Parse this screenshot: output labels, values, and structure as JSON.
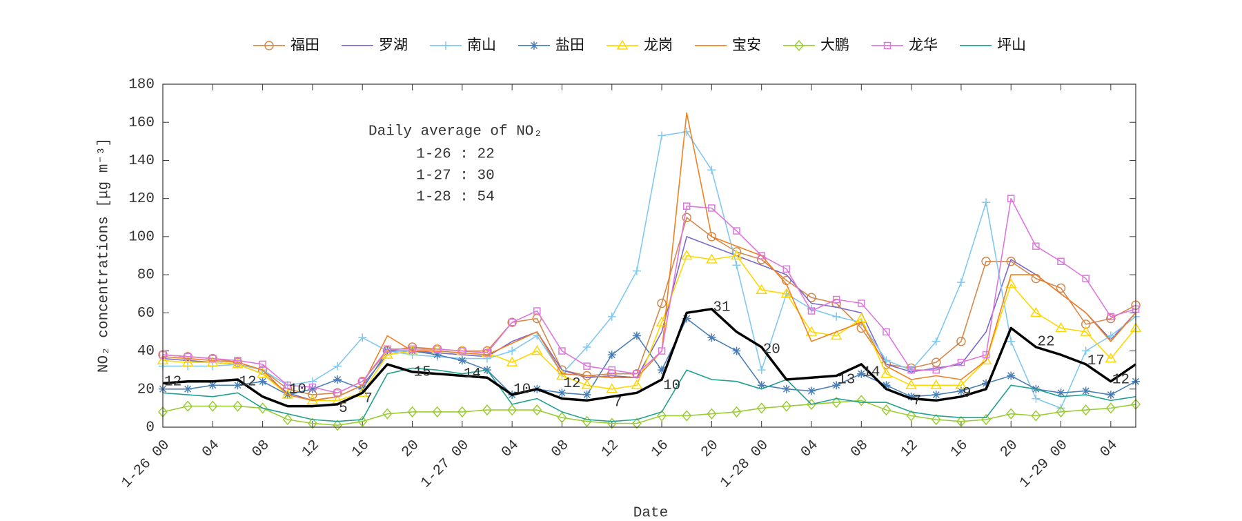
{
  "chart_data": {
    "type": "line",
    "y_label": "NO₂ concentrations [μg m⁻³]",
    "x_label": "Date",
    "text_box": {
      "title": "Daily average of NO₂",
      "lines": [
        "1-26 : 22",
        "1-27 : 30",
        "1-28 : 54"
      ]
    },
    "x": [
      "1-26 00",
      "1-26 02",
      "1-26 04",
      "1-26 06",
      "1-26 08",
      "1-26 10",
      "1-26 12",
      "1-26 14",
      "1-26 16",
      "1-26 18",
      "1-26 20",
      "1-26 22",
      "1-27 00",
      "1-27 02",
      "1-27 04",
      "1-27 06",
      "1-27 08",
      "1-27 10",
      "1-27 12",
      "1-27 14",
      "1-27 16",
      "1-27 18",
      "1-27 20",
      "1-27 22",
      "1-28 00",
      "1-28 02",
      "1-28 04",
      "1-28 06",
      "1-28 08",
      "1-28 10",
      "1-28 12",
      "1-28 14",
      "1-28 16",
      "1-28 18",
      "1-28 20",
      "1-28 22",
      "1-29 00",
      "1-29 02",
      "1-29 04",
      "1-29 06"
    ],
    "xticks": [
      "1-26 00",
      {
        "value": "1-26 04",
        "label": "04"
      },
      {
        "value": "1-26 08",
        "label": "08"
      },
      {
        "value": "1-26 12",
        "label": "12"
      },
      {
        "value": "1-26 16",
        "label": "16"
      },
      {
        "value": "1-26 20",
        "label": "20"
      },
      "1-27 00",
      {
        "value": "1-27 04",
        "label": "04"
      },
      {
        "value": "1-27 08",
        "label": "08"
      },
      {
        "value": "1-27 12",
        "label": "12"
      },
      {
        "value": "1-27 16",
        "label": "16"
      },
      {
        "value": "1-27 20",
        "label": "20"
      },
      "1-28 00",
      {
        "value": "1-28 04",
        "label": "04"
      },
      {
        "value": "1-28 08",
        "label": "08"
      },
      {
        "value": "1-28 12",
        "label": "12"
      },
      {
        "value": "1-28 16",
        "label": "16"
      },
      {
        "value": "1-28 20",
        "label": "20"
      },
      "1-29 00",
      {
        "value": "1-29 04",
        "label": "04"
      }
    ],
    "ylim": [
      0,
      180
    ],
    "yticks": [
      0,
      20,
      40,
      60,
      80,
      100,
      120,
      140,
      160,
      180
    ],
    "legend": "top",
    "series": [
      {
        "name": "福田",
        "color": "#d4884a",
        "marker": "circle",
        "values": [
          38,
          37,
          36,
          34,
          30,
          20,
          17,
          18,
          24,
          40,
          42,
          41,
          40,
          40,
          55,
          57,
          30,
          27,
          28,
          28,
          65,
          110,
          100,
          92,
          88,
          77,
          68,
          65,
          52,
          33,
          31,
          34,
          45,
          87,
          87,
          78,
          73,
          54,
          57,
          64
        ]
      },
      {
        "name": "罗湖",
        "color": "#7b68c8",
        "marker": "none",
        "values": [
          36,
          35,
          34,
          33,
          28,
          18,
          14,
          16,
          22,
          38,
          40,
          39,
          38,
          37,
          45,
          50,
          30,
          26,
          27,
          26,
          50,
          100,
          95,
          90,
          85,
          80,
          65,
          63,
          60,
          33,
          29,
          31,
          33,
          50,
          88,
          80,
          70,
          60,
          46,
          60
        ]
      },
      {
        "name": "南山",
        "color": "#80c8f0",
        "marker": "plus",
        "values": [
          32,
          32,
          32,
          33,
          30,
          22,
          24,
          32,
          47,
          40,
          38,
          37,
          36,
          36,
          40,
          48,
          28,
          42,
          58,
          82,
          153,
          155,
          135,
          85,
          30,
          70,
          62,
          58,
          55,
          35,
          30,
          45,
          76,
          118,
          45,
          15,
          10,
          40,
          48,
          58
        ]
      },
      {
        "name": "盐田",
        "color": "#4a7fb5",
        "marker": "star",
        "values": [
          20,
          20,
          22,
          22,
          24,
          17,
          20,
          25,
          20,
          40,
          40,
          38,
          35,
          30,
          17,
          20,
          18,
          17,
          38,
          48,
          30,
          57,
          47,
          40,
          22,
          20,
          19,
          22,
          28,
          22,
          16,
          17,
          19,
          23,
          27,
          20,
          18,
          19,
          17,
          24
        ]
      },
      {
        "name": "龙岗",
        "color": "#ffd700",
        "marker": "triangle",
        "values": [
          35,
          34,
          34,
          33,
          28,
          17,
          14,
          14,
          18,
          38,
          40,
          41,
          40,
          39,
          34,
          40,
          27,
          22,
          20,
          22,
          55,
          90,
          88,
          90,
          72,
          70,
          50,
          48,
          57,
          28,
          22,
          22,
          22,
          35,
          75,
          60,
          52,
          50,
          36,
          52
        ]
      },
      {
        "name": "宝安",
        "color": "#f08020",
        "marker": "none",
        "values": [
          37,
          36,
          35,
          34,
          30,
          17,
          14,
          16,
          22,
          48,
          40,
          40,
          39,
          38,
          44,
          50,
          28,
          27,
          26,
          26,
          40,
          165,
          100,
          95,
          90,
          75,
          45,
          50,
          55,
          32,
          25,
          27,
          25,
          35,
          80,
          80,
          70,
          60,
          45,
          60
        ]
      },
      {
        "name": "大鹏",
        "color": "#9acd32",
        "marker": "diamond",
        "values": [
          8,
          11,
          11,
          11,
          10,
          4,
          2,
          1,
          3,
          7,
          8,
          8,
          8,
          9,
          9,
          9,
          5,
          3,
          2,
          2,
          6,
          6,
          7,
          8,
          10,
          11,
          12,
          13,
          14,
          9,
          6,
          4,
          3,
          4,
          7,
          6,
          8,
          9,
          10,
          12
        ]
      },
      {
        "name": "龙华",
        "color": "#dd77dd",
        "marker": "square",
        "values": [
          38,
          37,
          36,
          35,
          33,
          22,
          21,
          18,
          24,
          41,
          41,
          41,
          40,
          39,
          55,
          61,
          40,
          32,
          30,
          28,
          40,
          116,
          115,
          103,
          90,
          83,
          61,
          67,
          65,
          50,
          30,
          30,
          34,
          38,
          120,
          95,
          87,
          78,
          58,
          62
        ]
      },
      {
        "name": "坪山",
        "color": "#20a090",
        "marker": "none",
        "values": [
          18,
          17,
          16,
          18,
          10,
          7,
          4,
          3,
          4,
          28,
          31,
          30,
          28,
          30,
          12,
          15,
          8,
          4,
          3,
          4,
          8,
          30,
          25,
          24,
          20,
          25,
          12,
          15,
          13,
          13,
          8,
          6,
          5,
          5,
          22,
          20,
          16,
          17,
          14,
          16
        ]
      },
      {
        "color": "#000000",
        "marker": "none",
        "line_width": 3.5,
        "values": [
          23,
          24,
          24,
          25,
          16,
          11,
          11,
          12,
          18,
          33,
          29,
          28,
          27,
          26,
          17,
          20,
          15,
          14,
          16,
          18,
          25,
          60,
          62,
          50,
          42,
          25,
          26,
          27,
          33,
          20,
          15,
          14,
          16,
          20,
          52,
          42,
          38,
          33,
          24,
          33
        ]
      }
    ],
    "annotations": [
      {
        "x": "1-26 00",
        "y": 24,
        "text": "12"
      },
      {
        "x": "1-26 06",
        "y": 24,
        "text": "12"
      },
      {
        "x": "1-26 10",
        "y": 20,
        "text": "10"
      },
      {
        "x": "1-26 14",
        "y": 10,
        "text": "5"
      },
      {
        "x": "1-26 16",
        "y": 15,
        "text": "7"
      },
      {
        "x": "1-26 20",
        "y": 29,
        "text": "15"
      },
      {
        "x": "1-27 00",
        "y": 28,
        "text": "14"
      },
      {
        "x": "1-27 04",
        "y": 20,
        "text": "10"
      },
      {
        "x": "1-27 08",
        "y": 23,
        "text": "12"
      },
      {
        "x": "1-27 12",
        "y": 13,
        "text": "7"
      },
      {
        "x": "1-27 16",
        "y": 22,
        "text": "10"
      },
      {
        "x": "1-27 20",
        "y": 63,
        "text": "31"
      },
      {
        "x": "1-28 00",
        "y": 41,
        "text": "20"
      },
      {
        "x": "1-28 06",
        "y": 25,
        "text": "13"
      },
      {
        "x": "1-28 08",
        "y": 29,
        "text": "14"
      },
      {
        "x": "1-28 12",
        "y": 14,
        "text": "7"
      },
      {
        "x": "1-28 16",
        "y": 18,
        "text": "9"
      },
      {
        "x": "1-28 22",
        "y": 45,
        "text": "22"
      },
      {
        "x": "1-29 02",
        "y": 35,
        "text": "17"
      },
      {
        "x": "1-29 04",
        "y": 25,
        "text": "12"
      }
    ]
  }
}
